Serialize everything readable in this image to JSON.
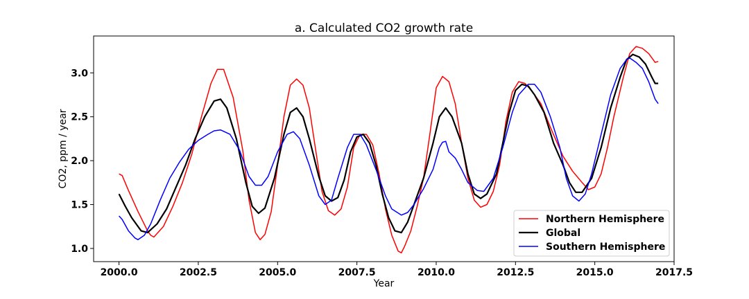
{
  "chart_data": {
    "type": "line",
    "title": "a. Calculated CO2 growth rate",
    "xlabel": "Year",
    "ylabel": "CO2, ppm / year",
    "xlim": [
      1999.2,
      2017.5
    ],
    "ylim": [
      0.85,
      3.42
    ],
    "xticks": [
      2000.0,
      2002.5,
      2005.0,
      2007.5,
      2010.0,
      2012.5,
      2015.0,
      2017.5
    ],
    "xtick_labels": [
      "2000.0",
      "2002.5",
      "2005.0",
      "2007.5",
      "2010.0",
      "2012.5",
      "2015.0",
      "2017.5"
    ],
    "yticks": [
      1.0,
      1.5,
      2.0,
      2.5,
      3.0
    ],
    "ytick_labels": [
      "1.0",
      "1.5",
      "2.0",
      "2.5",
      "3.0"
    ],
    "grid": false,
    "legend_position": "lower-right",
    "series": [
      {
        "name": "Northern Hemisphere",
        "color": "#ff0000",
        "points": [
          [
            2000.0,
            1.85
          ],
          [
            2000.1,
            1.83
          ],
          [
            2000.3,
            1.66
          ],
          [
            2000.6,
            1.42
          ],
          [
            2000.9,
            1.2
          ],
          [
            2001.0,
            1.15
          ],
          [
            2001.1,
            1.13
          ],
          [
            2001.4,
            1.25
          ],
          [
            2001.7,
            1.48
          ],
          [
            2002.0,
            1.75
          ],
          [
            2002.3,
            2.08
          ],
          [
            2002.6,
            2.5
          ],
          [
            2002.9,
            2.88
          ],
          [
            2003.1,
            3.04
          ],
          [
            2003.3,
            3.04
          ],
          [
            2003.6,
            2.72
          ],
          [
            2003.9,
            2.12
          ],
          [
            2004.1,
            1.55
          ],
          [
            2004.3,
            1.18
          ],
          [
            2004.45,
            1.1
          ],
          [
            2004.6,
            1.16
          ],
          [
            2004.8,
            1.42
          ],
          [
            2005.0,
            1.95
          ],
          [
            2005.2,
            2.5
          ],
          [
            2005.4,
            2.86
          ],
          [
            2005.6,
            2.93
          ],
          [
            2005.8,
            2.86
          ],
          [
            2006.0,
            2.6
          ],
          [
            2006.2,
            2.12
          ],
          [
            2006.4,
            1.65
          ],
          [
            2006.6,
            1.43
          ],
          [
            2006.8,
            1.38
          ],
          [
            2007.0,
            1.45
          ],
          [
            2007.2,
            1.7
          ],
          [
            2007.4,
            2.15
          ],
          [
            2007.6,
            2.3
          ],
          [
            2007.8,
            2.3
          ],
          [
            2008.0,
            2.18
          ],
          [
            2008.2,
            1.85
          ],
          [
            2008.4,
            1.45
          ],
          [
            2008.6,
            1.15
          ],
          [
            2008.8,
            0.97
          ],
          [
            2008.9,
            0.95
          ],
          [
            2009.0,
            1.02
          ],
          [
            2009.2,
            1.2
          ],
          [
            2009.4,
            1.48
          ],
          [
            2009.6,
            1.8
          ],
          [
            2009.8,
            2.3
          ],
          [
            2010.0,
            2.83
          ],
          [
            2010.2,
            2.96
          ],
          [
            2010.4,
            2.9
          ],
          [
            2010.6,
            2.65
          ],
          [
            2010.8,
            2.2
          ],
          [
            2011.0,
            1.8
          ],
          [
            2011.2,
            1.55
          ],
          [
            2011.4,
            1.47
          ],
          [
            2011.6,
            1.5
          ],
          [
            2011.8,
            1.65
          ],
          [
            2012.0,
            1.95
          ],
          [
            2012.2,
            2.45
          ],
          [
            2012.4,
            2.78
          ],
          [
            2012.6,
            2.9
          ],
          [
            2012.8,
            2.88
          ],
          [
            2013.0,
            2.8
          ],
          [
            2013.3,
            2.65
          ],
          [
            2013.6,
            2.38
          ],
          [
            2014.0,
            2.05
          ],
          [
            2014.3,
            1.88
          ],
          [
            2014.6,
            1.75
          ],
          [
            2014.8,
            1.67
          ],
          [
            2015.0,
            1.7
          ],
          [
            2015.2,
            1.85
          ],
          [
            2015.4,
            2.15
          ],
          [
            2015.6,
            2.5
          ],
          [
            2015.9,
            2.95
          ],
          [
            2016.1,
            3.22
          ],
          [
            2016.3,
            3.3
          ],
          [
            2016.5,
            3.28
          ],
          [
            2016.7,
            3.22
          ],
          [
            2016.9,
            3.12
          ],
          [
            2017.0,
            3.13
          ]
        ]
      },
      {
        "name": "Global",
        "color": "#000000",
        "points": [
          [
            2000.0,
            1.62
          ],
          [
            2000.2,
            1.48
          ],
          [
            2000.4,
            1.35
          ],
          [
            2000.7,
            1.2
          ],
          [
            2000.9,
            1.18
          ],
          [
            2001.2,
            1.28
          ],
          [
            2001.5,
            1.45
          ],
          [
            2001.8,
            1.7
          ],
          [
            2002.1,
            1.95
          ],
          [
            2002.4,
            2.25
          ],
          [
            2002.7,
            2.5
          ],
          [
            2003.0,
            2.68
          ],
          [
            2003.2,
            2.7
          ],
          [
            2003.4,
            2.6
          ],
          [
            2003.7,
            2.25
          ],
          [
            2004.0,
            1.75
          ],
          [
            2004.2,
            1.48
          ],
          [
            2004.4,
            1.4
          ],
          [
            2004.6,
            1.46
          ],
          [
            2004.9,
            1.8
          ],
          [
            2005.2,
            2.3
          ],
          [
            2005.4,
            2.55
          ],
          [
            2005.6,
            2.6
          ],
          [
            2005.8,
            2.5
          ],
          [
            2006.0,
            2.25
          ],
          [
            2006.3,
            1.82
          ],
          [
            2006.5,
            1.6
          ],
          [
            2006.7,
            1.54
          ],
          [
            2006.9,
            1.58
          ],
          [
            2007.1,
            1.78
          ],
          [
            2007.3,
            2.1
          ],
          [
            2007.5,
            2.27
          ],
          [
            2007.7,
            2.3
          ],
          [
            2007.9,
            2.2
          ],
          [
            2008.1,
            1.95
          ],
          [
            2008.3,
            1.62
          ],
          [
            2008.5,
            1.35
          ],
          [
            2008.7,
            1.2
          ],
          [
            2008.9,
            1.18
          ],
          [
            2009.1,
            1.3
          ],
          [
            2009.3,
            1.5
          ],
          [
            2009.6,
            1.8
          ],
          [
            2009.9,
            2.2
          ],
          [
            2010.1,
            2.5
          ],
          [
            2010.3,
            2.6
          ],
          [
            2010.5,
            2.5
          ],
          [
            2010.8,
            2.2
          ],
          [
            2011.0,
            1.85
          ],
          [
            2011.2,
            1.62
          ],
          [
            2011.4,
            1.57
          ],
          [
            2011.6,
            1.62
          ],
          [
            2011.9,
            1.85
          ],
          [
            2012.1,
            2.2
          ],
          [
            2012.3,
            2.55
          ],
          [
            2012.5,
            2.8
          ],
          [
            2012.7,
            2.87
          ],
          [
            2012.9,
            2.85
          ],
          [
            2013.1,
            2.75
          ],
          [
            2013.4,
            2.55
          ],
          [
            2013.7,
            2.2
          ],
          [
            2014.0,
            1.95
          ],
          [
            2014.2,
            1.75
          ],
          [
            2014.4,
            1.64
          ],
          [
            2014.6,
            1.64
          ],
          [
            2014.9,
            1.8
          ],
          [
            2015.2,
            2.15
          ],
          [
            2015.5,
            2.6
          ],
          [
            2015.8,
            2.95
          ],
          [
            2016.0,
            3.15
          ],
          [
            2016.2,
            3.21
          ],
          [
            2016.4,
            3.18
          ],
          [
            2016.6,
            3.1
          ],
          [
            2016.8,
            2.95
          ],
          [
            2016.9,
            2.88
          ],
          [
            2017.0,
            2.88
          ]
        ]
      },
      {
        "name": "Southern Hemisphere",
        "color": "#0000ff",
        "points": [
          [
            2000.0,
            1.37
          ],
          [
            2000.1,
            1.33
          ],
          [
            2000.3,
            1.2
          ],
          [
            2000.5,
            1.12
          ],
          [
            2000.6,
            1.1
          ],
          [
            2000.8,
            1.15
          ],
          [
            2001.0,
            1.28
          ],
          [
            2001.3,
            1.55
          ],
          [
            2001.6,
            1.8
          ],
          [
            2001.9,
            1.98
          ],
          [
            2002.2,
            2.13
          ],
          [
            2002.5,
            2.23
          ],
          [
            2002.8,
            2.3
          ],
          [
            2003.0,
            2.34
          ],
          [
            2003.2,
            2.35
          ],
          [
            2003.5,
            2.3
          ],
          [
            2003.8,
            2.12
          ],
          [
            2004.1,
            1.82
          ],
          [
            2004.3,
            1.72
          ],
          [
            2004.5,
            1.72
          ],
          [
            2004.7,
            1.82
          ],
          [
            2005.0,
            2.1
          ],
          [
            2005.3,
            2.3
          ],
          [
            2005.5,
            2.33
          ],
          [
            2005.7,
            2.25
          ],
          [
            2006.0,
            1.95
          ],
          [
            2006.3,
            1.6
          ],
          [
            2006.5,
            1.5
          ],
          [
            2006.7,
            1.55
          ],
          [
            2006.9,
            1.8
          ],
          [
            2007.2,
            2.15
          ],
          [
            2007.4,
            2.3
          ],
          [
            2007.6,
            2.3
          ],
          [
            2007.8,
            2.18
          ],
          [
            2008.1,
            1.9
          ],
          [
            2008.4,
            1.6
          ],
          [
            2008.6,
            1.45
          ],
          [
            2008.9,
            1.38
          ],
          [
            2009.1,
            1.41
          ],
          [
            2009.3,
            1.5
          ],
          [
            2009.6,
            1.68
          ],
          [
            2009.9,
            1.9
          ],
          [
            2010.1,
            2.15
          ],
          [
            2010.2,
            2.21
          ],
          [
            2010.3,
            2.22
          ],
          [
            2010.4,
            2.1
          ],
          [
            2010.6,
            2.03
          ],
          [
            2010.8,
            1.9
          ],
          [
            2011.0,
            1.75
          ],
          [
            2011.3,
            1.66
          ],
          [
            2011.5,
            1.65
          ],
          [
            2011.8,
            1.8
          ],
          [
            2012.1,
            2.15
          ],
          [
            2012.4,
            2.55
          ],
          [
            2012.6,
            2.75
          ],
          [
            2012.9,
            2.87
          ],
          [
            2013.1,
            2.87
          ],
          [
            2013.3,
            2.78
          ],
          [
            2013.6,
            2.5
          ],
          [
            2013.9,
            2.15
          ],
          [
            2014.1,
            1.8
          ],
          [
            2014.3,
            1.6
          ],
          [
            2014.5,
            1.54
          ],
          [
            2014.7,
            1.62
          ],
          [
            2014.9,
            1.85
          ],
          [
            2015.2,
            2.3
          ],
          [
            2015.5,
            2.75
          ],
          [
            2015.8,
            3.05
          ],
          [
            2016.0,
            3.15
          ],
          [
            2016.1,
            3.17
          ],
          [
            2016.3,
            3.12
          ],
          [
            2016.5,
            3.05
          ],
          [
            2016.7,
            2.9
          ],
          [
            2016.9,
            2.7
          ],
          [
            2017.0,
            2.65
          ]
        ]
      }
    ]
  }
}
